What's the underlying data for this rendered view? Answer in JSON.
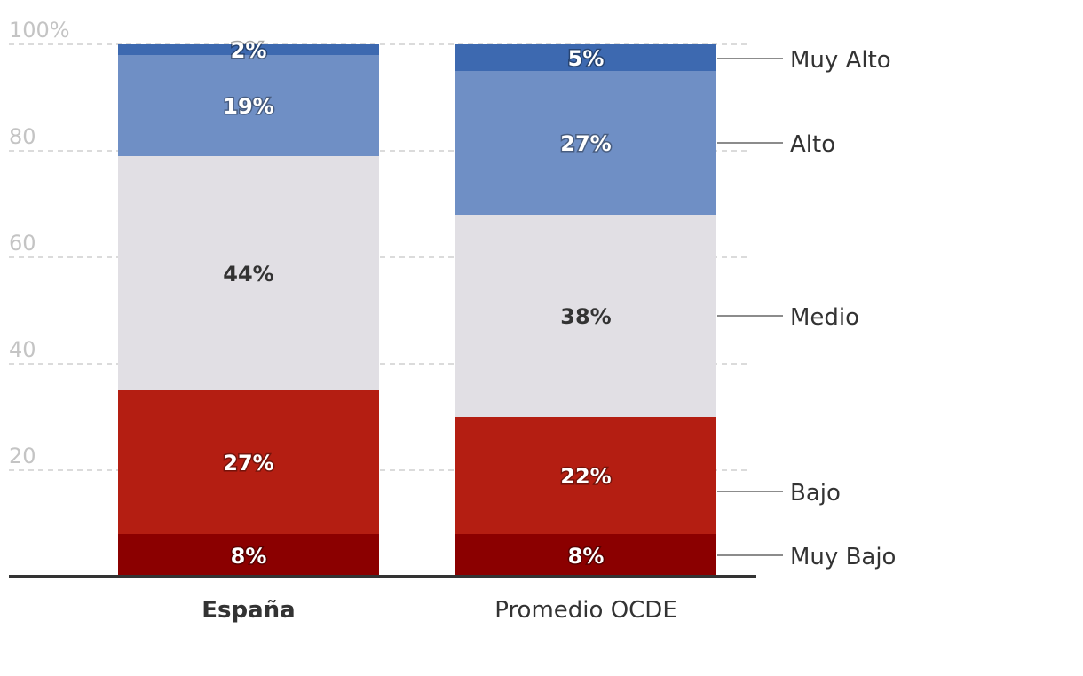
{
  "chart_data": {
    "type": "bar",
    "stacked": true,
    "ylim": [
      0,
      100
    ],
    "y_ticks": [
      {
        "value": 20,
        "label": "20"
      },
      {
        "value": 40,
        "label": "40"
      },
      {
        "value": 60,
        "label": "60"
      },
      {
        "value": 80,
        "label": "80"
      },
      {
        "value": 100,
        "label": "100%"
      }
    ],
    "grid": true,
    "categories": [
      "España",
      "Promedio OCDE"
    ],
    "category_bold": [
      true,
      false
    ],
    "series": [
      {
        "name": "Muy Bajo",
        "values": [
          8,
          8
        ],
        "labels": [
          "8%",
          "8%"
        ],
        "color": "#8b0000",
        "label_style": "light"
      },
      {
        "name": "Bajo",
        "values": [
          27,
          22
        ],
        "labels": [
          "27%",
          "22%"
        ],
        "color": "#b41e12",
        "label_style": "light"
      },
      {
        "name": "Medio",
        "values": [
          44,
          38
        ],
        "labels": [
          "44%",
          "38%"
        ],
        "color": "#e1dfe4",
        "label_style": "dark"
      },
      {
        "name": "Alto",
        "values": [
          19,
          27
        ],
        "labels": [
          "19%",
          "27%"
        ],
        "color": "#6f8fc5",
        "label_style": "light"
      },
      {
        "name": "Muy Alto",
        "values": [
          2,
          5
        ],
        "labels": [
          "2%",
          "5%"
        ],
        "color": "#3d69b0",
        "label_style": "light"
      }
    ],
    "legend_placement": "right"
  }
}
